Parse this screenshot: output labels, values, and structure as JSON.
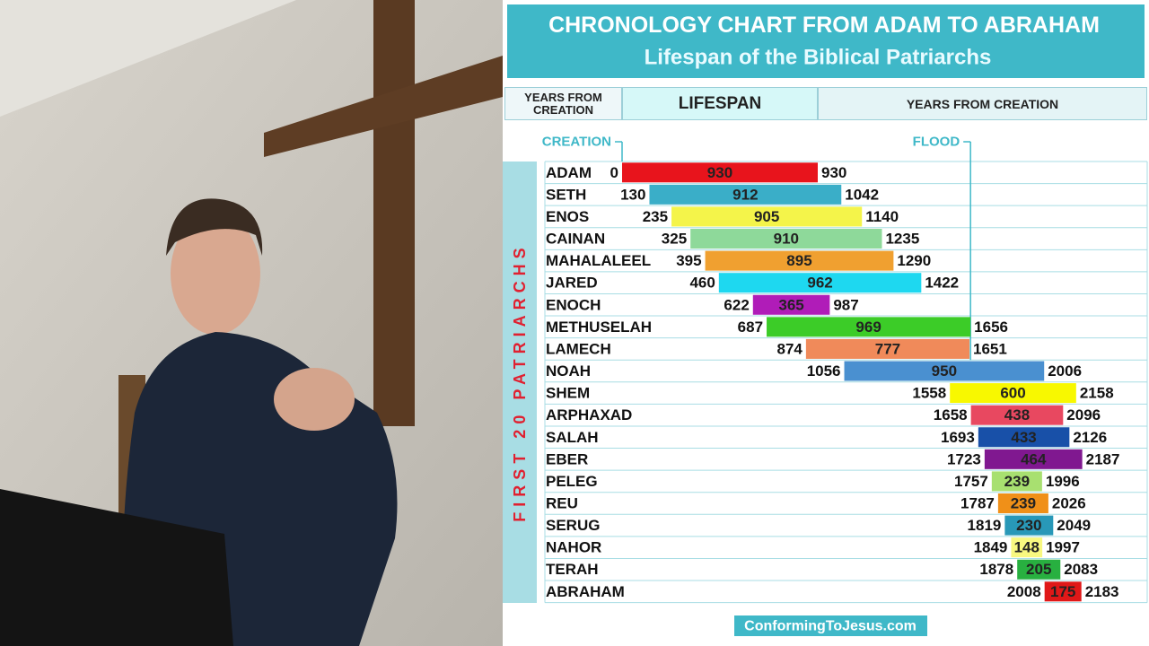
{
  "chart_data": {
    "type": "range-bar",
    "title": "CHRONOLOGY CHART FROM ADAM TO ABRAHAM",
    "subtitle": "Lifespan of the Biblical Patriarchs",
    "column_headers": [
      "YEARS FROM CREATION",
      "LIFESPAN",
      "YEARS FROM CREATION"
    ],
    "group_label": "FIRST 20 PATRIARCHS",
    "markers": [
      {
        "value": 0,
        "label": "CREATION"
      },
      {
        "value": 1656,
        "label": "FLOOD"
      }
    ],
    "categories": [
      "ADAM",
      "SETH",
      "ENOS",
      "CAINAN",
      "MAHALALEEL",
      "JARED",
      "ENOCH",
      "METHUSELAH",
      "LAMECH",
      "NOAH",
      "SHEM",
      "ARPHAXAD",
      "SALAH",
      "EBER",
      "PELEG",
      "REU",
      "SERUG",
      "NAHOR",
      "TERAH",
      "ABRAHAM"
    ],
    "start": [
      0,
      130,
      235,
      325,
      395,
      460,
      622,
      687,
      874,
      1056,
      1558,
      1658,
      1693,
      1723,
      1757,
      1787,
      1819,
      1849,
      1878,
      2008
    ],
    "values": [
      930,
      912,
      905,
      910,
      895,
      962,
      365,
      969,
      777,
      950,
      600,
      438,
      433,
      464,
      239,
      239,
      230,
      148,
      205,
      175
    ],
    "end": [
      930,
      1042,
      1140,
      1235,
      1290,
      1422,
      987,
      1656,
      1651,
      2006,
      2158,
      2096,
      2126,
      2187,
      1996,
      2026,
      2049,
      1997,
      2083,
      2183
    ],
    "colors": [
      "#e8141c",
      "#3aaec8",
      "#f4f44a",
      "#8ed99a",
      "#f0a030",
      "#1ed8f0",
      "#b01cb8",
      "#3ccc28",
      "#f08a5a",
      "#4a90d0",
      "#f8f800",
      "#e84860",
      "#1850a8",
      "#801890",
      "#a8e070",
      "#f09018",
      "#2898b8",
      "#f8f880",
      "#28b040",
      "#e01818"
    ],
    "xlim": [
      0,
      2500
    ],
    "footer": "ConformingToJesus.com"
  }
}
